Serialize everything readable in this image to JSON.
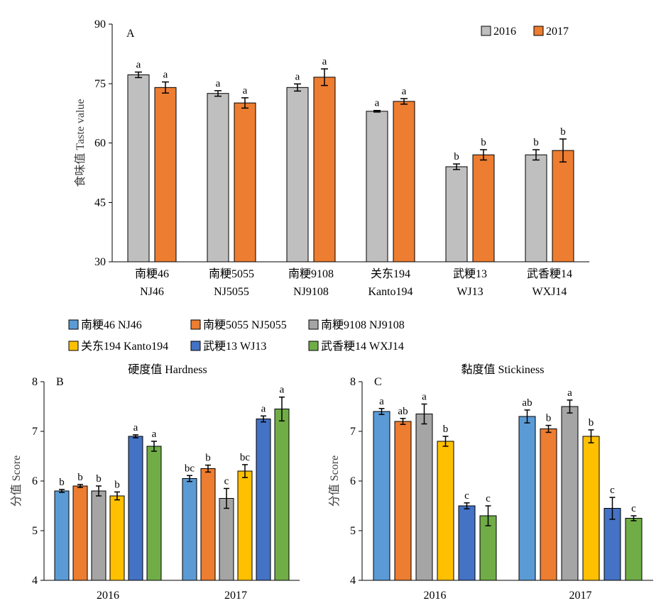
{
  "chart_data": [
    {
      "type": "bar",
      "panel_label": "A",
      "ylabel": "食味值 Taste value",
      "ylim": [
        30,
        90
      ],
      "yticks": [
        30,
        45,
        60,
        75,
        90
      ],
      "grid": false,
      "legend_position": "top-right",
      "categories": [
        "南粳46",
        "南粳5055",
        "南粳9108",
        "关东194",
        "武粳13",
        "武香粳14"
      ],
      "categories_en": [
        "NJ46",
        "NJ5055",
        "NJ9108",
        "Kanto194",
        "WJ13",
        "WXJ14"
      ],
      "series": [
        {
          "name": "2016",
          "color": "#bfbfbf",
          "values": [
            77.2,
            72.5,
            74.0,
            68.0,
            54.0,
            57.0
          ],
          "errors": [
            0.7,
            0.7,
            0.9,
            0.2,
            0.7,
            1.3
          ],
          "letters": [
            "a",
            "a",
            "a",
            "a",
            "b",
            "b"
          ]
        },
        {
          "name": "2017",
          "color": "#ed7d31",
          "values": [
            74.0,
            70.1,
            76.6,
            70.5,
            57.0,
            58.1
          ],
          "errors": [
            1.4,
            1.3,
            2.1,
            0.7,
            1.3,
            2.9
          ],
          "letters": [
            "a",
            "a",
            "a",
            "a",
            "b",
            "b"
          ]
        }
      ]
    },
    {
      "type": "bar",
      "panel_label": "B",
      "title": "硬度值 Hardness",
      "ylabel": "分值 Score",
      "ylim": [
        4,
        8
      ],
      "yticks": [
        4,
        5,
        6,
        7,
        8
      ],
      "grid": false,
      "categories": [
        "2016",
        "2017"
      ],
      "series": [
        {
          "values": [
            5.8,
            6.05
          ],
          "errors": [
            0.03,
            0.06
          ],
          "letters": [
            "b",
            "bc"
          ]
        },
        {
          "values": [
            5.9,
            6.25
          ],
          "errors": [
            0.03,
            0.07
          ],
          "letters": [
            "b",
            "b"
          ]
        },
        {
          "values": [
            5.8,
            5.65
          ],
          "errors": [
            0.1,
            0.2
          ],
          "letters": [
            "b",
            "c"
          ]
        },
        {
          "values": [
            5.7,
            6.2
          ],
          "errors": [
            0.08,
            0.13
          ],
          "letters": [
            "b",
            "bc"
          ]
        },
        {
          "values": [
            6.9,
            7.25
          ],
          "errors": [
            0.03,
            0.06
          ],
          "letters": [
            "a",
            "a"
          ]
        },
        {
          "values": [
            6.7,
            7.45
          ],
          "errors": [
            0.1,
            0.24
          ],
          "letters": [
            "a",
            "a"
          ]
        }
      ]
    },
    {
      "type": "bar",
      "panel_label": "C",
      "title": "黏度值 Stickiness",
      "ylabel": "分值 Score",
      "ylim": [
        4,
        8
      ],
      "yticks": [
        4,
        5,
        6,
        7,
        8
      ],
      "grid": false,
      "categories": [
        "2016",
        "2017"
      ],
      "series": [
        {
          "values": [
            7.4,
            7.3
          ],
          "errors": [
            0.06,
            0.13
          ],
          "letters": [
            "a",
            "ab"
          ]
        },
        {
          "values": [
            7.2,
            7.05
          ],
          "errors": [
            0.06,
            0.07
          ],
          "letters": [
            "ab",
            "b"
          ]
        },
        {
          "values": [
            7.35,
            7.5
          ],
          "errors": [
            0.2,
            0.13
          ],
          "letters": [
            "a",
            "a"
          ]
        },
        {
          "values": [
            6.8,
            6.9
          ],
          "errors": [
            0.1,
            0.13
          ],
          "letters": [
            "b",
            "b"
          ]
        },
        {
          "values": [
            5.5,
            5.45
          ],
          "errors": [
            0.06,
            0.22
          ],
          "letters": [
            "c",
            "c"
          ]
        },
        {
          "values": [
            5.3,
            5.25
          ],
          "errors": [
            0.2,
            0.05
          ],
          "letters": [
            "c",
            "c"
          ]
        }
      ]
    }
  ],
  "shared_legend": {
    "position": "top",
    "items": [
      {
        "name": "南粳46 NJ46",
        "color": "#5b9bd5"
      },
      {
        "name": "南粳5055 NJ5055",
        "color": "#ed7d31"
      },
      {
        "name": "南粳9108 NJ9108",
        "color": "#a5a5a5"
      },
      {
        "name": "关东194 Kanto194",
        "color": "#ffc000"
      },
      {
        "name": "武粳13 WJ13",
        "color": "#4472c4"
      },
      {
        "name": "武香粳14 WXJ14",
        "color": "#70ad47"
      }
    ]
  }
}
